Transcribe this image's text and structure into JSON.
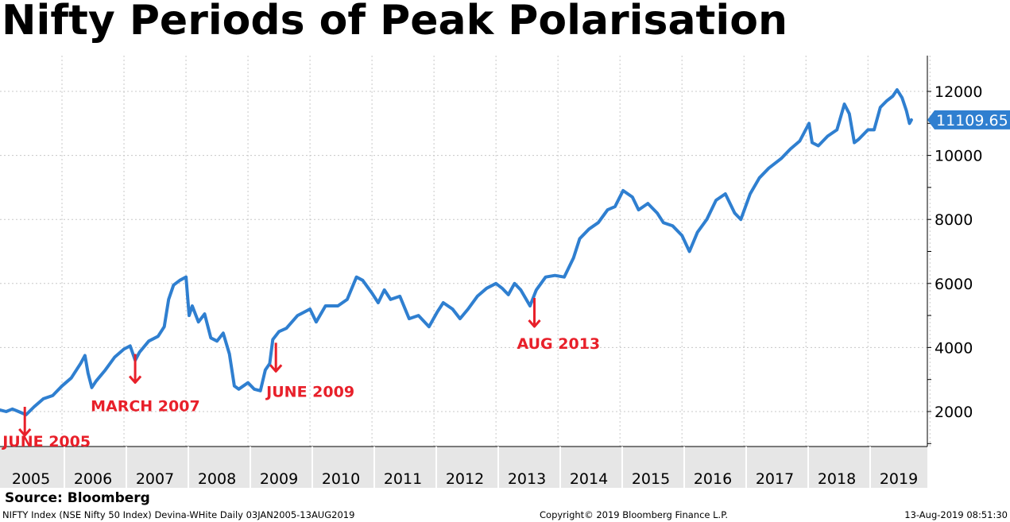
{
  "chart_data": {
    "type": "line",
    "title": "Nifty Periods of Peak Polarisation",
    "series_name": "NIFTY Index",
    "line_color": "#2f7fd0",
    "annotation_color": "#e8202a",
    "last_value": 11109.65,
    "last_value_label": "11109.65",
    "ylim": [
      800,
      13000
    ],
    "yticks": [
      2000,
      4000,
      6000,
      8000,
      10000,
      12000
    ],
    "ytick_labels": [
      "2000",
      "4000",
      "6000",
      "8000",
      "10000",
      "12000"
    ],
    "xlim": [
      2005.0,
      2019.83
    ],
    "xtick_labels": [
      "2005",
      "2006",
      "2007",
      "2008",
      "2009",
      "2010",
      "2011",
      "2012",
      "2013",
      "2014",
      "2015",
      "2016",
      "2017",
      "2018",
      "2019"
    ],
    "grid": true,
    "points": [
      [
        2005.0,
        2050
      ],
      [
        2005.1,
        2000
      ],
      [
        2005.2,
        2080
      ],
      [
        2005.3,
        2000
      ],
      [
        2005.42,
        1900
      ],
      [
        2005.55,
        2150
      ],
      [
        2005.7,
        2400
      ],
      [
        2005.85,
        2500
      ],
      [
        2006.0,
        2800
      ],
      [
        2006.15,
        3050
      ],
      [
        2006.3,
        3500
      ],
      [
        2006.37,
        3750
      ],
      [
        2006.42,
        3200
      ],
      [
        2006.48,
        2750
      ],
      [
        2006.55,
        2950
      ],
      [
        2006.7,
        3300
      ],
      [
        2006.85,
        3700
      ],
      [
        2007.0,
        3950
      ],
      [
        2007.1,
        4050
      ],
      [
        2007.18,
        3600
      ],
      [
        2007.25,
        3850
      ],
      [
        2007.4,
        4200
      ],
      [
        2007.55,
        4350
      ],
      [
        2007.65,
        4650
      ],
      [
        2007.72,
        5500
      ],
      [
        2007.8,
        5950
      ],
      [
        2007.9,
        6100
      ],
      [
        2008.0,
        6200
      ],
      [
        2008.05,
        5000
      ],
      [
        2008.1,
        5300
      ],
      [
        2008.2,
        4800
      ],
      [
        2008.3,
        5050
      ],
      [
        2008.4,
        4300
      ],
      [
        2008.5,
        4200
      ],
      [
        2008.6,
        4450
      ],
      [
        2008.7,
        3800
      ],
      [
        2008.78,
        2800
      ],
      [
        2008.85,
        2700
      ],
      [
        2009.0,
        2900
      ],
      [
        2009.1,
        2700
      ],
      [
        2009.2,
        2650
      ],
      [
        2009.28,
        3300
      ],
      [
        2009.35,
        3500
      ],
      [
        2009.4,
        4250
      ],
      [
        2009.5,
        4500
      ],
      [
        2009.62,
        4600
      ],
      [
        2009.8,
        5000
      ],
      [
        2010.0,
        5200
      ],
      [
        2010.1,
        4800
      ],
      [
        2010.25,
        5300
      ],
      [
        2010.45,
        5300
      ],
      [
        2010.6,
        5500
      ],
      [
        2010.75,
        6200
      ],
      [
        2010.85,
        6100
      ],
      [
        2011.0,
        5700
      ],
      [
        2011.1,
        5400
      ],
      [
        2011.2,
        5800
      ],
      [
        2011.3,
        5500
      ],
      [
        2011.45,
        5600
      ],
      [
        2011.6,
        4900
      ],
      [
        2011.75,
        5000
      ],
      [
        2011.92,
        4650
      ],
      [
        2012.05,
        5100
      ],
      [
        2012.15,
        5400
      ],
      [
        2012.3,
        5200
      ],
      [
        2012.42,
        4900
      ],
      [
        2012.55,
        5200
      ],
      [
        2012.7,
        5600
      ],
      [
        2012.85,
        5850
      ],
      [
        2013.0,
        6000
      ],
      [
        2013.1,
        5850
      ],
      [
        2013.2,
        5650
      ],
      [
        2013.3,
        6000
      ],
      [
        2013.4,
        5800
      ],
      [
        2013.55,
        5300
      ],
      [
        2013.65,
        5800
      ],
      [
        2013.8,
        6200
      ],
      [
        2013.95,
        6250
      ],
      [
        2014.1,
        6200
      ],
      [
        2014.25,
        6800
      ],
      [
        2014.35,
        7400
      ],
      [
        2014.5,
        7700
      ],
      [
        2014.65,
        7900
      ],
      [
        2014.8,
        8300
      ],
      [
        2014.92,
        8400
      ],
      [
        2015.05,
        8900
      ],
      [
        2015.2,
        8700
      ],
      [
        2015.3,
        8300
      ],
      [
        2015.45,
        8500
      ],
      [
        2015.6,
        8200
      ],
      [
        2015.7,
        7900
      ],
      [
        2015.85,
        7800
      ],
      [
        2016.0,
        7500
      ],
      [
        2016.12,
        7000
      ],
      [
        2016.25,
        7600
      ],
      [
        2016.4,
        8000
      ],
      [
        2016.55,
        8600
      ],
      [
        2016.7,
        8800
      ],
      [
        2016.85,
        8200
      ],
      [
        2016.95,
        8000
      ],
      [
        2017.1,
        8800
      ],
      [
        2017.25,
        9300
      ],
      [
        2017.4,
        9600
      ],
      [
        2017.6,
        9900
      ],
      [
        2017.75,
        10200
      ],
      [
        2017.9,
        10450
      ],
      [
        2018.05,
        11000
      ],
      [
        2018.1,
        10400
      ],
      [
        2018.2,
        10300
      ],
      [
        2018.35,
        10600
      ],
      [
        2018.5,
        10800
      ],
      [
        2018.62,
        11600
      ],
      [
        2018.7,
        11300
      ],
      [
        2018.78,
        10400
      ],
      [
        2018.85,
        10500
      ],
      [
        2019.0,
        10800
      ],
      [
        2019.1,
        10800
      ],
      [
        2019.2,
        11500
      ],
      [
        2019.3,
        11700
      ],
      [
        2019.4,
        11850
      ],
      [
        2019.47,
        12050
      ],
      [
        2019.55,
        11800
      ],
      [
        2019.62,
        11400
      ],
      [
        2019.67,
        11000
      ],
      [
        2019.7,
        11109.65
      ]
    ],
    "annotations": [
      {
        "label": "JUNE 2005",
        "x": 2005.4,
        "y": 1950
      },
      {
        "label": "MARCH 2007",
        "x": 2007.18,
        "y": 3600
      },
      {
        "label": "JUNE 2009",
        "x": 2009.45,
        "y": 3950
      },
      {
        "label": "AUG 2013",
        "x": 2013.62,
        "y": 5350
      }
    ]
  },
  "source": "Source: Bloomberg",
  "footer": {
    "left": "NIFTY Index (NSE Nifty 50 Index) Devina-WHite  Daily 03JAN2005-13AUG2019",
    "center": "Copyright© 2019 Bloomberg Finance L.P.",
    "right": "13-Aug-2019 08:51:30"
  }
}
